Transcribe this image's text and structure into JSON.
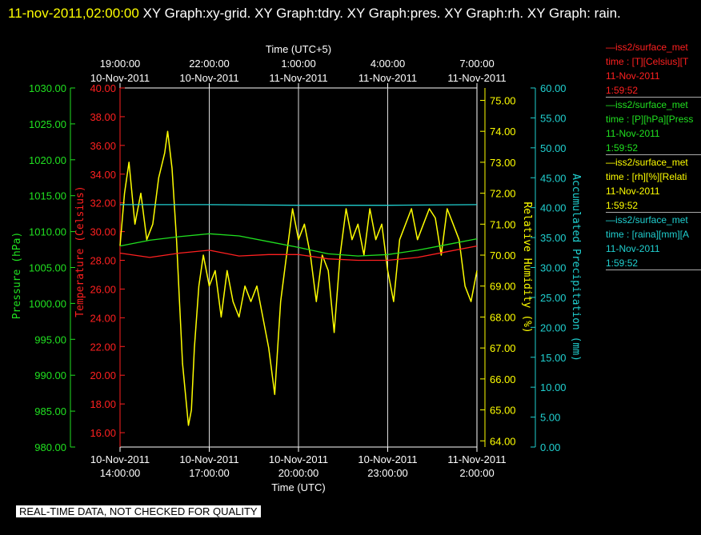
{
  "header": {
    "timestamp": "11-nov-2011,02:00:00",
    "rest": " XY Graph:xy-grid.  XY Graph:tdry.  XY Graph:pres.  XY Graph:rh.  XY Graph: rain."
  },
  "footer_note": "REAL-TIME DATA, NOT CHECKED FOR QUALITY",
  "legend": [
    {
      "line1": "—iss2/surface_met",
      "line2": "time : [T][Celsius][T",
      "line3": "11-Nov-2011",
      "line4": "1:59:52",
      "color": "#ff2020"
    },
    {
      "line1": "—iss2/surface_met",
      "line2": "time : [P][hPa][Press",
      "line3": "11-Nov-2011",
      "line4": "1:59:52",
      "color": "#20e020"
    },
    {
      "line1": "—iss2/surface_met",
      "line2": "time : [rh][%][Relati",
      "line3": "11-Nov-2011",
      "line4": "1:59:52",
      "color": "#ffff00"
    },
    {
      "line1": "—iss2/surface_met",
      "line2": "time : [raina][mm][A",
      "line3": "11-Nov-2011",
      "line4": "1:59:52",
      "color": "#20d0d0"
    }
  ],
  "chart_data": {
    "type": "line",
    "top_axis": {
      "title": "Time (UTC+5)",
      "ticks": [
        {
          "t": "19:00:00",
          "d": "10-Nov-2011"
        },
        {
          "t": "22:00:00",
          "d": "10-Nov-2011"
        },
        {
          "t": "1:00:00",
          "d": "11-Nov-2011"
        },
        {
          "t": "4:00:00",
          "d": "11-Nov-2011"
        },
        {
          "t": "7:00:00",
          "d": "11-Nov-2011"
        }
      ]
    },
    "bottom_axis": {
      "title": "Time (UTC)",
      "ticks": [
        {
          "d": "10-Nov-2011",
          "t": "14:00:00"
        },
        {
          "d": "10-Nov-2011",
          "t": "17:00:00"
        },
        {
          "d": "10-Nov-2011",
          "t": "20:00:00"
        },
        {
          "d": "10-Nov-2011",
          "t": "23:00:00"
        },
        {
          "d": "11-Nov-2011",
          "t": "2:00:00"
        }
      ],
      "range_hours": [
        0,
        12
      ]
    },
    "axes": {
      "pressure": {
        "label": "Pressure (hPa)",
        "min": 980,
        "max": 1030,
        "ticks": [
          "1030.00",
          "1025.00",
          "1020.00",
          "1015.00",
          "1010.00",
          "1005.00",
          "1000.00",
          "995.00",
          "990.00",
          "985.00",
          "980.00"
        ],
        "color": "#20e020"
      },
      "temperature": {
        "label": "Temperature (Celsius)",
        "min": 15,
        "max": 40,
        "ticks": [
          "40.00",
          "38.00",
          "36.00",
          "34.00",
          "32.00",
          "30.00",
          "28.00",
          "26.00",
          "24.00",
          "22.00",
          "20.00",
          "18.00",
          "16.00"
        ],
        "color": "#ff2020"
      },
      "humidity": {
        "label": "Relative Humidity (%)",
        "min": 63.8,
        "max": 75.4,
        "ticks": [
          "75.00",
          "74.00",
          "73.00",
          "72.00",
          "71.00",
          "70.00",
          "69.00",
          "68.00",
          "67.00",
          "66.00",
          "65.00",
          "64.00"
        ],
        "color": "#ffff00"
      },
      "precip": {
        "label": "Accumulated Precipitation (mm)",
        "min": 0,
        "max": 60,
        "ticks": [
          "60.00",
          "55.00",
          "50.00",
          "45.00",
          "40.00",
          "35.00",
          "30.00",
          "25.00",
          "20.00",
          "15.00",
          "10.00",
          "5.00",
          "0.00"
        ],
        "color": "#20d0d0"
      }
    },
    "series": [
      {
        "name": "rh",
        "axis": "humidity",
        "color": "#ffff00",
        "x": [
          0,
          0.15,
          0.3,
          0.5,
          0.7,
          0.9,
          1.1,
          1.3,
          1.5,
          1.6,
          1.75,
          1.9,
          2.0,
          2.1,
          2.2,
          2.3,
          2.4,
          2.5,
          2.65,
          2.8,
          3.0,
          3.2,
          3.4,
          3.6,
          3.8,
          4.0,
          4.2,
          4.4,
          4.6,
          4.8,
          5.0,
          5.2,
          5.4,
          5.6,
          5.8,
          6.0,
          6.2,
          6.4,
          6.6,
          6.8,
          7.0,
          7.2,
          7.4,
          7.6,
          7.8,
          8.0,
          8.2,
          8.4,
          8.6,
          8.8,
          9.0,
          9.2,
          9.4,
          9.6,
          9.8,
          10.0,
          10.2,
          10.4,
          10.6,
          10.8,
          11.0,
          11.2,
          11.4,
          11.6,
          11.8,
          12.0
        ],
        "y": [
          70.3,
          72.0,
          73.0,
          71.0,
          72.0,
          70.5,
          71.0,
          72.5,
          73.3,
          74.0,
          72.8,
          70.5,
          68.5,
          66.5,
          65.5,
          64.5,
          65.0,
          67.0,
          69.0,
          70.0,
          69.0,
          69.5,
          68.0,
          69.5,
          68.5,
          68.0,
          69.0,
          68.5,
          69.0,
          68.0,
          67.0,
          65.5,
          68.5,
          70.0,
          71.5,
          70.5,
          71.0,
          70.0,
          68.5,
          70.0,
          69.5,
          67.5,
          70.0,
          71.5,
          70.5,
          71.0,
          70.0,
          71.5,
          70.5,
          71.0,
          69.5,
          68.5,
          70.5,
          71.0,
          71.5,
          70.5,
          71.0,
          71.5,
          71.2,
          70.0,
          71.5,
          71.0,
          70.5,
          69.0,
          68.5,
          69.5
        ]
      },
      {
        "name": "pressure",
        "axis": "pressure",
        "color": "#20e020",
        "x": [
          0,
          1,
          2,
          3,
          4,
          5,
          6,
          7,
          8,
          9,
          10,
          11,
          12
        ],
        "y": [
          1008.0,
          1008.8,
          1009.3,
          1009.7,
          1009.4,
          1008.6,
          1007.8,
          1006.9,
          1006.6,
          1006.8,
          1007.4,
          1008.2,
          1009.0
        ]
      },
      {
        "name": "temperature",
        "axis": "temperature",
        "color": "#ff2020",
        "x": [
          0,
          1,
          2,
          3,
          4,
          5,
          6,
          7,
          8,
          9,
          10,
          11,
          12
        ],
        "y": [
          28.5,
          28.2,
          28.5,
          28.7,
          28.3,
          28.4,
          28.4,
          28.1,
          28.0,
          28.0,
          28.2,
          28.6,
          29.0
        ]
      },
      {
        "name": "precip",
        "axis": "precip",
        "color": "#20d0d0",
        "x": [
          0,
          3,
          6,
          9,
          12
        ],
        "y": [
          40.5,
          40.5,
          40.4,
          40.4,
          40.5
        ]
      }
    ]
  }
}
